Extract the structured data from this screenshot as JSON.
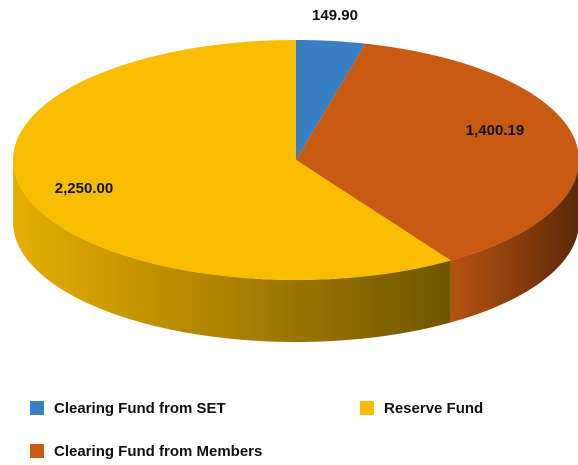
{
  "chart_data": {
    "type": "pie",
    "categories": [
      "Clearing Fund from SET",
      "Clearing Fund from Members",
      "Reserve Fund"
    ],
    "values": [
      149.9,
      1400.19,
      2250.0
    ],
    "value_labels": [
      "149.90",
      "1,400.19",
      "2,250.00"
    ],
    "colors": [
      "#3a7fc4",
      "#c85a12",
      "#f9bd00"
    ],
    "legend": "bottom"
  }
}
